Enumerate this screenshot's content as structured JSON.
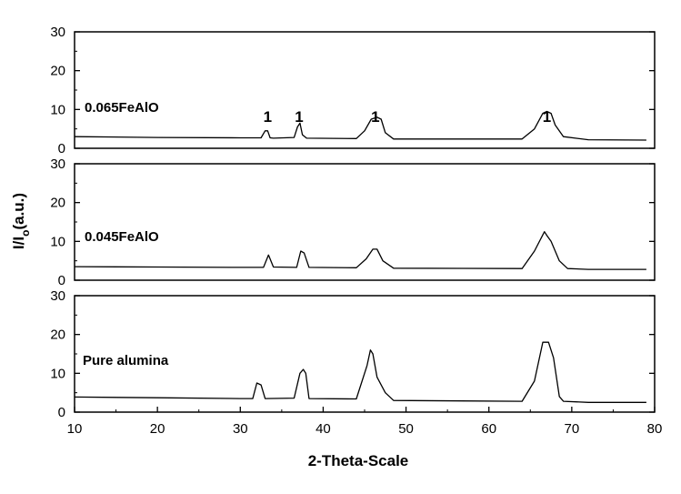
{
  "chart_data": {
    "type": "line",
    "xlabel": "2-Theta-Scale",
    "ylabel": "I/Io(a.u.)",
    "ylabel_main": "I/I",
    "ylabel_sub": "o",
    "ylabel_tail": "(a.u.)",
    "xlim": [
      10,
      80
    ],
    "xticks": [
      10,
      20,
      30,
      40,
      50,
      60,
      70,
      80
    ],
    "ylim": [
      0,
      30
    ],
    "yticks": [
      0,
      10,
      20,
      30
    ],
    "grid": false,
    "panels": [
      {
        "label": "0.065FeAlO",
        "x": [
          10,
          20,
          30,
          32.5,
          33.0,
          33.3,
          33.6,
          34.0,
          36.5,
          36.9,
          37.2,
          37.5,
          38.0,
          44,
          45.0,
          45.8,
          46.5,
          47.0,
          47.5,
          48.5,
          64,
          65.5,
          66.5,
          67.0,
          67.5,
          68.0,
          69.0,
          72,
          79
        ],
        "y": [
          3.0,
          2.8,
          2.7,
          2.7,
          4.5,
          4.5,
          2.7,
          2.6,
          2.8,
          5.5,
          6.5,
          3.5,
          2.6,
          2.5,
          4.5,
          7.5,
          8.0,
          7.5,
          4.0,
          2.4,
          2.4,
          5.0,
          9.0,
          9.5,
          9.0,
          6.0,
          3.0,
          2.2,
          2.1
        ],
        "peak_labels": [
          {
            "text": "1",
            "x": 33.3
          },
          {
            "text": "1",
            "x": 37.1
          },
          {
            "text": "1",
            "x": 46.3
          },
          {
            "text": "1",
            "x": 67.0
          }
        ]
      },
      {
        "label": "0.045FeAlO",
        "x": [
          10,
          20,
          30,
          32.8,
          33.4,
          34.0,
          36.8,
          37.3,
          37.7,
          38.3,
          44,
          45.2,
          46.0,
          46.5,
          47.2,
          48.5,
          64,
          65.5,
          66.7,
          67.0,
          67.5,
          68.5,
          69.5,
          72,
          79
        ],
        "y": [
          3.5,
          3.4,
          3.3,
          3.3,
          6.5,
          3.4,
          3.3,
          7.5,
          7.0,
          3.3,
          3.2,
          5.5,
          8.0,
          8.0,
          5.0,
          3.1,
          3.0,
          7.5,
          12.5,
          11.5,
          10.0,
          5.0,
          3.0,
          2.8,
          2.8
        ]
      },
      {
        "label": "Pure alumina",
        "x": [
          10,
          20,
          30,
          31.5,
          32.0,
          32.5,
          33.0,
          36.5,
          37.2,
          37.6,
          37.9,
          38.3,
          44,
          45.3,
          45.7,
          46.0,
          46.5,
          47.5,
          48.5,
          64,
          65.5,
          66.5,
          67.2,
          67.8,
          68.5,
          69.0,
          72,
          79
        ],
        "y": [
          3.9,
          3.7,
          3.5,
          3.5,
          7.5,
          7.0,
          3.5,
          3.6,
          10.0,
          11.0,
          10.0,
          3.5,
          3.4,
          12.0,
          16.0,
          15.0,
          9.0,
          5.0,
          3.0,
          2.8,
          8.0,
          18.0,
          18.0,
          14.0,
          4.0,
          2.8,
          2.5,
          2.5
        ]
      }
    ]
  }
}
